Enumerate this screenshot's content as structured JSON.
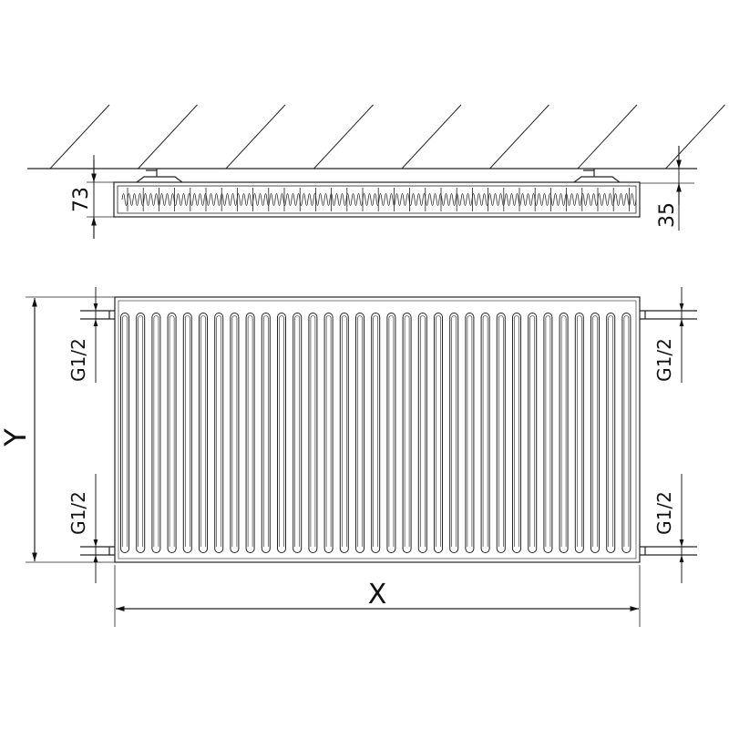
{
  "top_view": {
    "depth_label": "73",
    "wall_distance_label": "35"
  },
  "front_view": {
    "height_label": "Y",
    "width_label": "X",
    "connection_top_left": "G1/2",
    "connection_bottom_left": "G1/2",
    "connection_top_right": "G1/2",
    "connection_bottom_right": "G1/2"
  },
  "colors": {
    "line": "#222222",
    "background": "#ffffff"
  }
}
